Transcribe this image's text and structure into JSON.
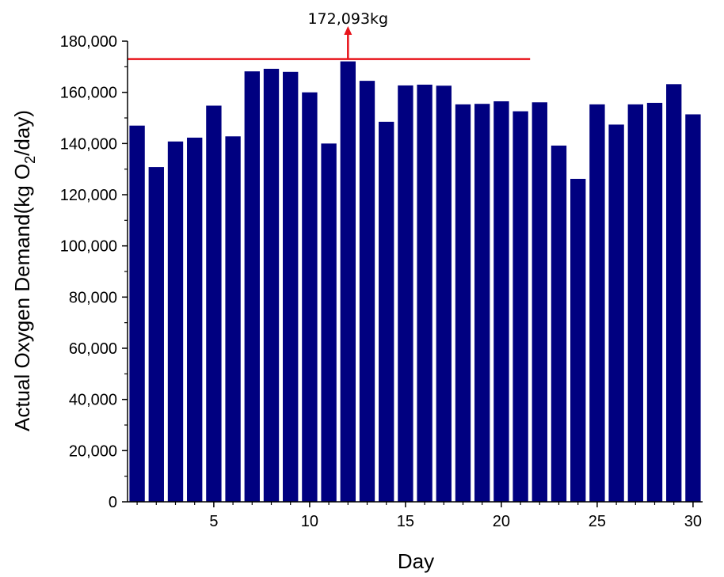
{
  "chart_data": {
    "type": "bar",
    "x": [
      1,
      2,
      3,
      4,
      5,
      6,
      7,
      8,
      9,
      10,
      11,
      12,
      13,
      14,
      15,
      16,
      17,
      18,
      19,
      20,
      21,
      22,
      23,
      24,
      25,
      26,
      27,
      28,
      29,
      30
    ],
    "values": [
      147000,
      130800,
      140800,
      142300,
      154800,
      142800,
      168200,
      169200,
      168000,
      160000,
      140000,
      172093,
      164500,
      148500,
      162700,
      163000,
      162600,
      155300,
      155500,
      156500,
      152600,
      156100,
      139200,
      126200,
      155300,
      147400,
      155300,
      155900,
      163200,
      151400
    ],
    "xlabel": "Day",
    "ylabel_parts": [
      "Actual Oxygen Demand(kg O",
      "2",
      "/day)"
    ],
    "xlim": [
      0.5,
      30.5
    ],
    "ylim": [
      0,
      180000
    ],
    "x_ticks": [
      "5",
      "10",
      "15",
      "20",
      "25",
      "30"
    ],
    "y_ticks": [
      "0",
      "20,000",
      "40,000",
      "60,000",
      "80,000",
      "100,000",
      "120,000",
      "140,000",
      "160,000",
      "180,000"
    ],
    "grid": false,
    "bar_color": "#000080",
    "reference_line": {
      "value": 173000,
      "x_range": [
        0.5,
        21.5
      ],
      "color": "#e8141b"
    },
    "annotation": {
      "text": "172,093kg",
      "x": 12,
      "color": "#e8141b"
    }
  }
}
